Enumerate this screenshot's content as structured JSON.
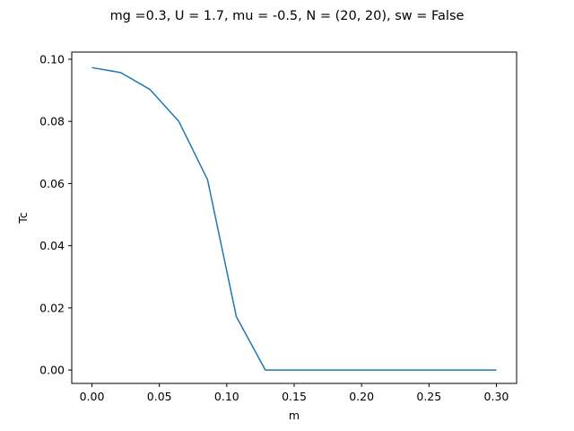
{
  "chart_data": {
    "type": "line",
    "title": "mg =0.3, U = 1.7, mu = -0.5, N = (20, 20), sw = False",
    "xlabel": "m",
    "ylabel": "Tc",
    "xlim": [
      -0.015,
      0.315
    ],
    "ylim": [
      -0.0043,
      0.1023
    ],
    "xticks": [
      0.0,
      0.05,
      0.1,
      0.15,
      0.2,
      0.25,
      0.3
    ],
    "xtick_labels": [
      "0.00",
      "0.05",
      "0.10",
      "0.15",
      "0.20",
      "0.25",
      "0.30"
    ],
    "yticks": [
      0.0,
      0.02,
      0.04,
      0.06,
      0.08,
      0.1
    ],
    "ytick_labels": [
      "0.00",
      "0.02",
      "0.04",
      "0.06",
      "0.08",
      "0.10"
    ],
    "grid": false,
    "series": [
      {
        "color": "#1f77b4",
        "x": [
          0.0,
          0.0214,
          0.0429,
          0.0643,
          0.0857,
          0.1071,
          0.1286,
          0.15,
          0.1714,
          0.1929,
          0.2143,
          0.2357,
          0.2571,
          0.2786,
          0.3
        ],
        "y": [
          0.0973,
          0.0957,
          0.0903,
          0.0801,
          0.0613,
          0.0172,
          0.0,
          0.0,
          0.0,
          0.0,
          0.0,
          0.0,
          0.0,
          0.0,
          0.0
        ]
      }
    ]
  }
}
